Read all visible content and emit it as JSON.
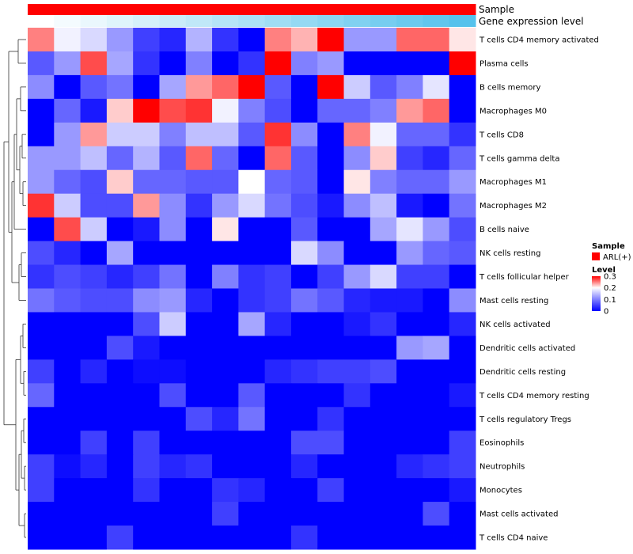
{
  "chart_data": {
    "type": "heatmap",
    "title": "",
    "annotation_tracks": [
      {
        "name": "Sample",
        "value": "ARL(+)",
        "color": "#FF0000"
      },
      {
        "name": "Gene expression level",
        "color_low": "#FFFFFF",
        "color_high": "#56C2EC"
      }
    ],
    "color_scale": {
      "low": "#0000FF",
      "mid": "#FFFFFF",
      "high": "#FF0000",
      "min": 0,
      "mid_value": 0.2,
      "max": 0.3
    },
    "rows": [
      "T cells CD4 memory activated",
      "Plasma cells",
      "B cells memory",
      "Macrophages M0",
      "T cells CD8",
      "T cells gamma delta",
      "Macrophages M1",
      "Macrophages M2",
      "B cells naive",
      "NK cells resting",
      "T cells follicular helper",
      "Mast cells resting",
      "NK cells activated",
      "Dendritic cells activated",
      "Dendritic cells resting",
      "T cells CD4 memory resting",
      "T cells regulatory  Tregs",
      "Eosinophils",
      "Neutrophils",
      "Monocytes",
      "Mast cells activated",
      "T cells CD4 naive"
    ],
    "n_columns": 17,
    "values": [
      [
        0.25,
        0.19,
        0.17,
        0.12,
        0.05,
        0.03,
        0.14,
        0.04,
        0.0,
        0.25,
        0.23,
        0.3,
        0.12,
        0.12,
        0.26,
        0.26,
        0.21
      ],
      [
        0.07,
        0.12,
        0.27,
        0.13,
        0.04,
        0.0,
        0.1,
        0.0,
        0.04,
        0.3,
        0.1,
        0.12,
        0.0,
        0.0,
        0.0,
        0.0,
        0.3
      ],
      [
        0.11,
        0.0,
        0.07,
        0.09,
        0.0,
        0.13,
        0.24,
        0.26,
        0.3,
        0.07,
        0.0,
        0.3,
        0.16,
        0.07,
        0.1,
        0.18,
        0.0
      ],
      [
        0.0,
        0.08,
        0.02,
        0.22,
        0.3,
        0.27,
        0.28,
        0.19,
        0.1,
        0.06,
        0.0,
        0.08,
        0.08,
        0.1,
        0.24,
        0.26,
        0.0
      ],
      [
        0.0,
        0.12,
        0.24,
        0.16,
        0.16,
        0.1,
        0.15,
        0.15,
        0.07,
        0.28,
        0.11,
        0.0,
        0.25,
        0.19,
        0.08,
        0.08,
        0.04
      ],
      [
        0.12,
        0.12,
        0.15,
        0.08,
        0.14,
        0.07,
        0.26,
        0.08,
        0.0,
        0.26,
        0.07,
        0.0,
        0.11,
        0.22,
        0.05,
        0.03,
        0.08
      ],
      [
        0.12,
        0.08,
        0.06,
        0.22,
        0.08,
        0.08,
        0.07,
        0.07,
        0.2,
        0.08,
        0.07,
        0.0,
        0.21,
        0.1,
        0.08,
        0.08,
        0.12
      ],
      [
        0.28,
        0.16,
        0.06,
        0.06,
        0.24,
        0.11,
        0.04,
        0.12,
        0.17,
        0.09,
        0.06,
        0.02,
        0.11,
        0.15,
        0.02,
        0.0,
        0.09
      ],
      [
        0.0,
        0.27,
        0.16,
        0.0,
        0.02,
        0.11,
        0.0,
        0.21,
        0.0,
        0.0,
        0.07,
        0.0,
        0.0,
        0.13,
        0.18,
        0.12,
        0.06
      ],
      [
        0.06,
        0.03,
        0.0,
        0.13,
        0.0,
        0.0,
        0.0,
        0.0,
        0.0,
        0.0,
        0.17,
        0.11,
        0.0,
        0.0,
        0.12,
        0.08,
        0.07
      ],
      [
        0.04,
        0.06,
        0.05,
        0.03,
        0.05,
        0.09,
        0.0,
        0.1,
        0.04,
        0.05,
        0.0,
        0.05,
        0.12,
        0.17,
        0.05,
        0.05,
        0.0
      ],
      [
        0.09,
        0.07,
        0.06,
        0.06,
        0.11,
        0.12,
        0.03,
        0.0,
        0.04,
        0.05,
        0.09,
        0.07,
        0.03,
        0.02,
        0.02,
        0.0,
        0.11
      ],
      [
        0.0,
        0.0,
        0.0,
        0.0,
        0.06,
        0.16,
        0.0,
        0.0,
        0.13,
        0.03,
        0.0,
        0.0,
        0.02,
        0.04,
        0.0,
        0.0,
        0.03
      ],
      [
        0.0,
        0.0,
        0.0,
        0.06,
        0.02,
        0.0,
        0.0,
        0.0,
        0.0,
        0.0,
        0.0,
        0.0,
        0.0,
        0.0,
        0.12,
        0.13,
        0.0
      ],
      [
        0.05,
        0.0,
        0.03,
        0.0,
        0.01,
        0.01,
        0.0,
        0.0,
        0.0,
        0.03,
        0.04,
        0.05,
        0.05,
        0.06,
        0.0,
        0.0,
        0.0
      ],
      [
        0.08,
        0.0,
        0.0,
        0.0,
        0.0,
        0.06,
        0.0,
        0.0,
        0.07,
        0.0,
        0.0,
        0.0,
        0.04,
        0.0,
        0.0,
        0.0,
        0.02
      ],
      [
        0.0,
        0.0,
        0.0,
        0.0,
        0.0,
        0.0,
        0.06,
        0.03,
        0.09,
        0.0,
        0.0,
        0.04,
        0.0,
        0.0,
        0.0,
        0.0,
        0.0
      ],
      [
        0.0,
        0.0,
        0.05,
        0.0,
        0.05,
        0.0,
        0.0,
        0.0,
        0.0,
        0.0,
        0.06,
        0.06,
        0.0,
        0.0,
        0.0,
        0.0,
        0.05
      ],
      [
        0.05,
        0.01,
        0.03,
        0.0,
        0.05,
        0.03,
        0.04,
        0.0,
        0.0,
        0.0,
        0.03,
        0.0,
        0.0,
        0.0,
        0.03,
        0.04,
        0.05
      ],
      [
        0.05,
        0.0,
        0.0,
        0.0,
        0.04,
        0.0,
        0.0,
        0.04,
        0.03,
        0.0,
        0.0,
        0.05,
        0.0,
        0.0,
        0.0,
        0.0,
        0.02
      ],
      [
        0.0,
        0.0,
        0.0,
        0.0,
        0.0,
        0.0,
        0.0,
        0.05,
        0.0,
        0.0,
        0.0,
        0.0,
        0.0,
        0.0,
        0.0,
        0.06,
        0.0
      ],
      [
        0.0,
        0.0,
        0.0,
        0.05,
        0.0,
        0.0,
        0.0,
        0.0,
        0.0,
        0.0,
        0.04,
        0.0,
        0.0,
        0.0,
        0.0,
        0.0,
        0.0
      ]
    ],
    "legend": {
      "sample_title": "Sample",
      "sample_entry": "ARL(+)",
      "level_title": "Level",
      "level_ticks": [
        "0.3",
        "0.2",
        "0.1",
        "0"
      ],
      "level_tick_values": [
        0.3,
        0.2,
        0.1,
        0
      ]
    }
  }
}
